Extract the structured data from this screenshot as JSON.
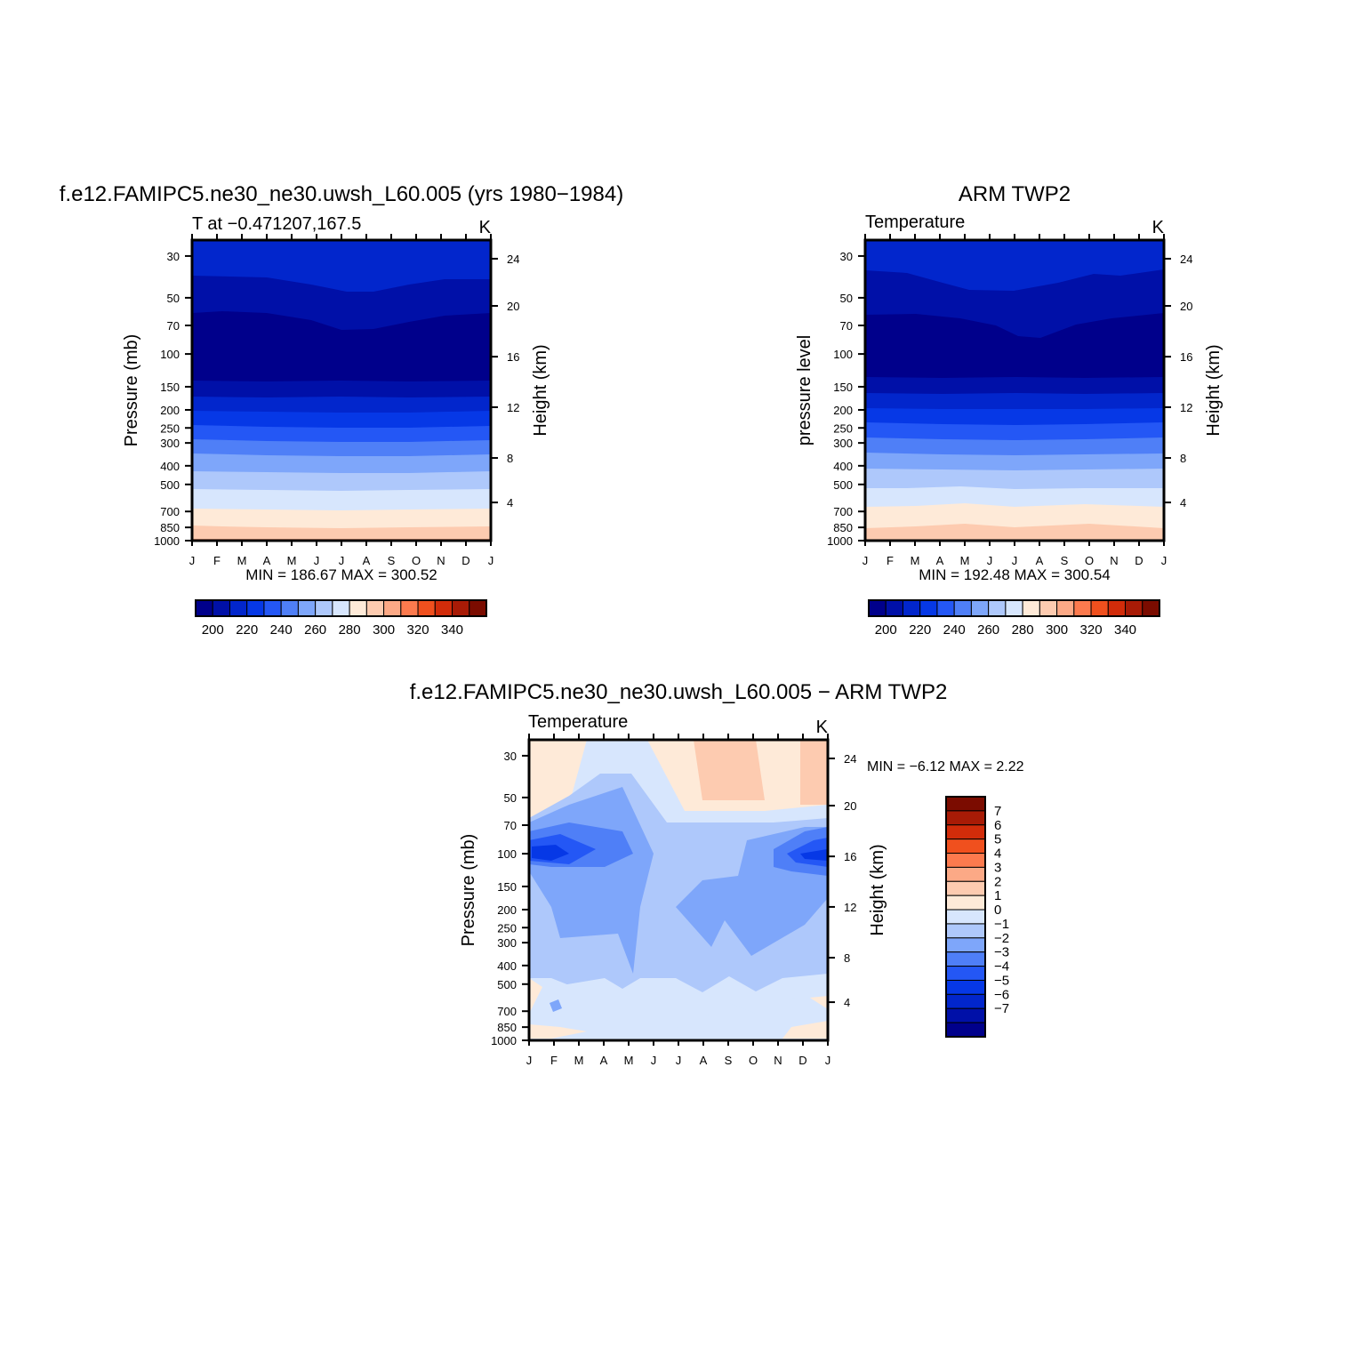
{
  "colors": {
    "temp_scale": [
      "#00008b",
      "#0010a8",
      "#0226cc",
      "#0638e6",
      "#2457f5",
      "#4f7ff7",
      "#7ea6fa",
      "#aec8fb",
      "#d7e6fd",
      "#feead8",
      "#fdcbb0",
      "#fca986",
      "#fc7a4e",
      "#f0501e",
      "#d22c0a",
      "#a81b06",
      "#7b0c00"
    ],
    "diff_scale": [
      "#00008b",
      "#0010a8",
      "#0226cc",
      "#0638e6",
      "#2457f5",
      "#4f7ff7",
      "#7ea6fa",
      "#aec8fb",
      "#d7e6fd",
      "#feead8",
      "#fdcbb0",
      "#fca986",
      "#fc7a4e",
      "#f0501e",
      "#d22c0a",
      "#a81b06",
      "#7b0c00"
    ]
  },
  "chart_data": [
    {
      "type": "contour",
      "id": "model",
      "title": "f.e12.FAMIPC5.ne30_ne30.uwsh_L60.005 (yrs 1980−1984)",
      "subtitle_left": "T at −0.471207,167.5",
      "subtitle_right": "K",
      "ylabel": "Pressure (mb)",
      "ylabel_right": "Height (km)",
      "x_ticks": [
        "J",
        "F",
        "M",
        "A",
        "M",
        "J",
        "J",
        "A",
        "S",
        "O",
        "N",
        "D",
        "J"
      ],
      "y_ticks": [
        "30",
        "50",
        "70",
        "100",
        "150",
        "200",
        "250",
        "300",
        "400",
        "500",
        "700",
        "850",
        "1000"
      ],
      "y_ticks_right": [
        "24",
        "20",
        "16",
        "12",
        "8",
        "4"
      ],
      "minmax_text": "MIN =  186.67  MAX =  300.52",
      "colorbar_labels": [
        "200",
        "220",
        "240",
        "260",
        "280",
        "300",
        "320",
        "340"
      ],
      "min": 186.67,
      "max": 300.52
    },
    {
      "type": "contour",
      "id": "obs",
      "title": "ARM TWP2",
      "subtitle_left": "Temperature",
      "subtitle_right": "K",
      "ylabel": "pressure level",
      "ylabel_right": "Height (km)",
      "x_ticks": [
        "J",
        "F",
        "M",
        "A",
        "M",
        "J",
        "J",
        "A",
        "S",
        "O",
        "N",
        "D",
        "J"
      ],
      "y_ticks": [
        "30",
        "50",
        "70",
        "100",
        "150",
        "200",
        "250",
        "300",
        "400",
        "500",
        "700",
        "850",
        "1000"
      ],
      "y_ticks_right": [
        "24",
        "20",
        "16",
        "12",
        "8",
        "4"
      ],
      "minmax_text": "MIN =  192.48  MAX =  300.54",
      "colorbar_labels": [
        "200",
        "220",
        "240",
        "260",
        "280",
        "300",
        "320",
        "340"
      ],
      "min": 192.48,
      "max": 300.54
    },
    {
      "type": "contour",
      "id": "diff",
      "title": "f.e12.FAMIPC5.ne30_ne30.uwsh_L60.005 − ARM TWP2",
      "subtitle_left": "Temperature",
      "subtitle_right": "K",
      "ylabel": "Pressure (mb)",
      "ylabel_right": "Height (km)",
      "x_ticks": [
        "J",
        "F",
        "M",
        "A",
        "M",
        "J",
        "J",
        "A",
        "S",
        "O",
        "N",
        "D",
        "J"
      ],
      "y_ticks": [
        "30",
        "50",
        "70",
        "100",
        "150",
        "200",
        "250",
        "300",
        "400",
        "500",
        "700",
        "850",
        "1000"
      ],
      "y_ticks_right": [
        "24",
        "20",
        "16",
        "12",
        "8",
        "4"
      ],
      "minmax_text": "MIN =   −6.12  MAX =    2.22",
      "colorbar_labels": [
        "7",
        "6",
        "5",
        "4",
        "3",
        "2",
        "1",
        "0",
        "−1",
        "−2",
        "−3",
        "−4",
        "−5",
        "−6",
        "−7"
      ],
      "min": -6.12,
      "max": 2.22
    }
  ]
}
